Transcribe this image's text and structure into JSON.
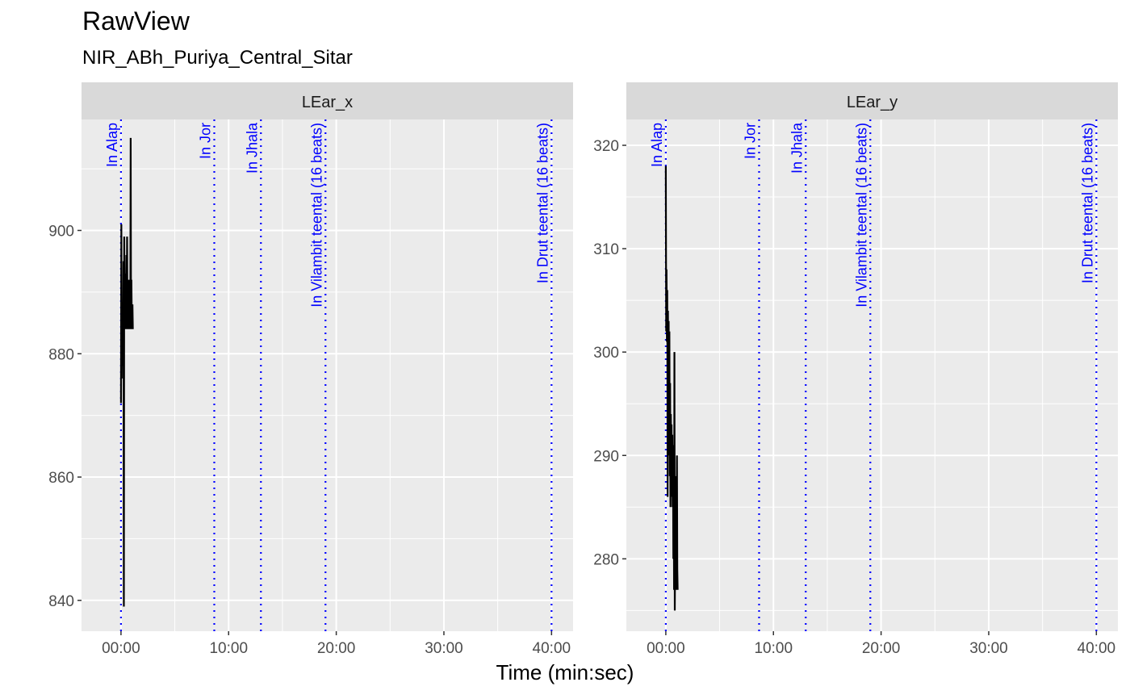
{
  "title": "RawView",
  "subtitle": "NIR_ABh_Puriya_Central_Sitar",
  "xlabel": "Time (min:sec)",
  "colors": {
    "panel_bg": "#EBEBEB",
    "strip_bg": "#D9D9D9",
    "grid": "#FFFFFF",
    "line": "#000000",
    "annotation": "#0000FF",
    "tick_text": "#4D4D4D"
  },
  "chart_data": [
    {
      "type": "line",
      "facet": "LEar_x",
      "xlim": [
        -220,
        2520
      ],
      "ylim": [
        835,
        918
      ],
      "x_ticks": [
        0,
        600,
        1200,
        1800,
        2400
      ],
      "x_tick_labels": [
        "00:00",
        "10:00",
        "20:00",
        "30:00",
        "40:00"
      ],
      "y_ticks": [
        840,
        860,
        880,
        900
      ],
      "y_tick_labels": [
        "840",
        "860",
        "880",
        "900"
      ],
      "grid": true,
      "series": [
        {
          "x": [
            0,
            2,
            4,
            6,
            8,
            10,
            12,
            14,
            16,
            18,
            20,
            22,
            24,
            26,
            28,
            30,
            32,
            34,
            36,
            38,
            40,
            42,
            44,
            46,
            48,
            50,
            52,
            54,
            56,
            58,
            60,
            62,
            64,
            66
          ],
          "y": [
            872,
            901,
            876,
            888,
            878,
            884,
            882,
            895,
            839,
            899,
            884,
            887,
            893,
            884,
            888,
            896,
            884,
            899,
            886,
            884,
            890,
            885,
            892,
            884,
            887,
            884,
            888,
            915,
            884,
            892,
            886,
            884,
            888,
            884
          ]
        }
      ],
      "annotations": [
        {
          "x": 0,
          "label": "In Alap"
        },
        {
          "x": 520,
          "label": "In Jor"
        },
        {
          "x": 780,
          "label": "In Jhala"
        },
        {
          "x": 1140,
          "label": "In Vilambit teental (16 beats)"
        },
        {
          "x": 2400,
          "label": "In Drut teental (16 beats)"
        }
      ]
    },
    {
      "type": "line",
      "facet": "LEar_y",
      "xlim": [
        -220,
        2520
      ],
      "ylim": [
        273,
        322.5
      ],
      "x_ticks": [
        0,
        600,
        1200,
        1800,
        2400
      ],
      "x_tick_labels": [
        "00:00",
        "10:00",
        "20:00",
        "30:00",
        "40:00"
      ],
      "y_ticks": [
        280,
        290,
        300,
        310,
        320
      ],
      "y_tick_labels": [
        "280",
        "290",
        "300",
        "310",
        "320"
      ],
      "grid": true,
      "series": [
        {
          "x": [
            0,
            2,
            4,
            6,
            8,
            10,
            12,
            14,
            16,
            18,
            20,
            22,
            24,
            26,
            28,
            30,
            32,
            34,
            36,
            38,
            40,
            42,
            44,
            46,
            48,
            50,
            52,
            54,
            56,
            58,
            60,
            62,
            64,
            66
          ],
          "y": [
            318,
            302,
            308,
            301,
            306,
            286,
            304,
            293,
            303,
            290,
            302,
            288,
            297,
            285,
            294,
            290,
            293,
            286,
            292,
            285,
            291,
            280,
            289,
            277,
            300,
            275,
            281,
            277,
            288,
            283,
            277,
            290,
            279,
            277
          ]
        }
      ],
      "annotations": [
        {
          "x": 0,
          "label": "In Alap"
        },
        {
          "x": 520,
          "label": "In Jor"
        },
        {
          "x": 780,
          "label": "In Jhala"
        },
        {
          "x": 1140,
          "label": "In Vilambit teental (16 beats)"
        },
        {
          "x": 2400,
          "label": "In Drut teental (16 beats)"
        }
      ]
    }
  ]
}
